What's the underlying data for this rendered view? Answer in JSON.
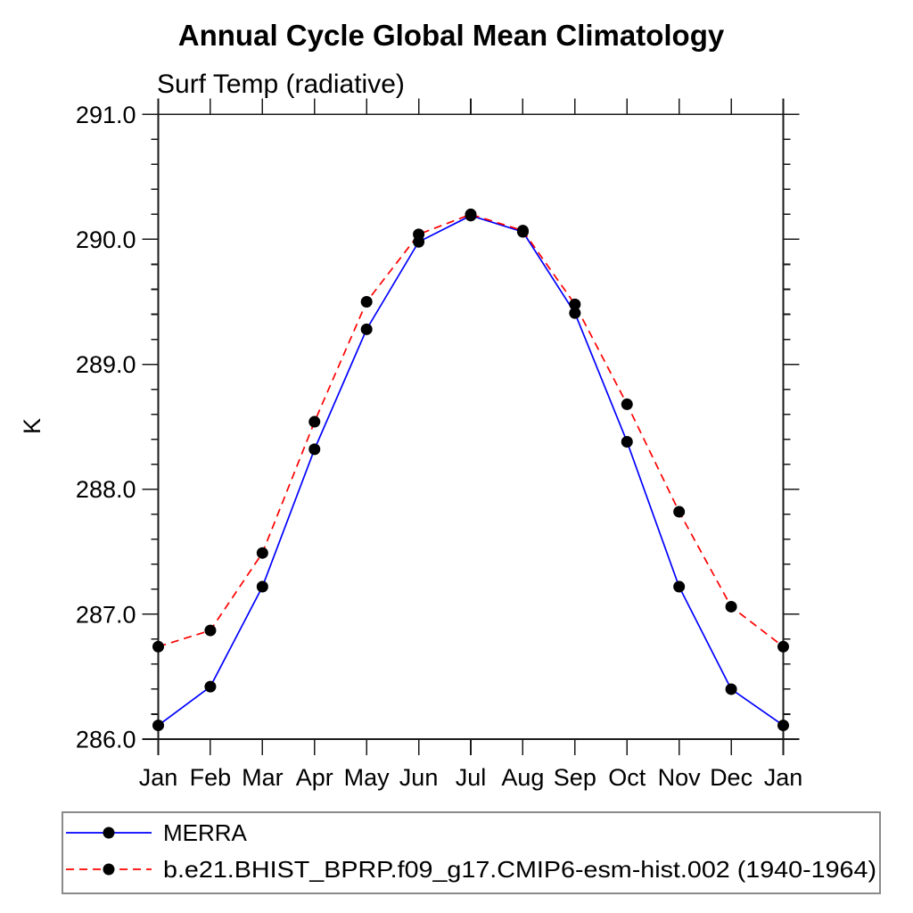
{
  "title": "Annual Cycle Global Mean Climatology",
  "subtitle": "Surf Temp (radiative)",
  "ylabel": "K",
  "legend": [
    {
      "label": "MERRA",
      "color": "#0000ff",
      "line_style": "solid",
      "marker_color": "#000000"
    },
    {
      "label": "b.e21.BHIST_BPRP.f09_g17.CMIP6-esm-hist.002 (1940-1964)",
      "color": "#ff0000",
      "line_style": "dashed",
      "marker_color": "#000000"
    }
  ],
  "chart_data": {
    "type": "line",
    "title": "Annual Cycle Global Mean Climatology",
    "subtitle": "Surf Temp (radiative)",
    "xlabel": "",
    "ylabel": "K",
    "categories": [
      "Jan",
      "Feb",
      "Mar",
      "Apr",
      "May",
      "Jun",
      "Jul",
      "Aug",
      "Sep",
      "Oct",
      "Nov",
      "Dec",
      "Jan"
    ],
    "series": [
      {
        "name": "MERRA",
        "color": "#0000ff",
        "style": "solid",
        "marker": "filled-black-circle",
        "values": [
          286.11,
          286.42,
          287.22,
          288.32,
          289.28,
          289.98,
          290.19,
          290.06,
          289.41,
          288.38,
          287.22,
          286.4,
          286.11
        ]
      },
      {
        "name": "b.e21.BHIST_BPRP.f09_g17.CMIP6-esm-hist.002 (1940-1964)",
        "color": "#ff0000",
        "style": "dashed",
        "marker": "filled-black-circle",
        "values": [
          286.74,
          286.87,
          287.49,
          288.54,
          289.5,
          290.04,
          290.2,
          290.07,
          289.48,
          288.68,
          287.82,
          287.06,
          286.74
        ]
      }
    ],
    "ylim": [
      286.0,
      291.0
    ],
    "ytick_step": 1.0,
    "yminor_step": 0.2,
    "ytick_labels": [
      "286.0",
      "287.0",
      "288.0",
      "289.0",
      "290.0",
      "291.0"
    ],
    "grid": false,
    "ticks": "outward-all-four-sides",
    "legend_position": "bottom-left-box",
    "marker_color": "#000000"
  }
}
